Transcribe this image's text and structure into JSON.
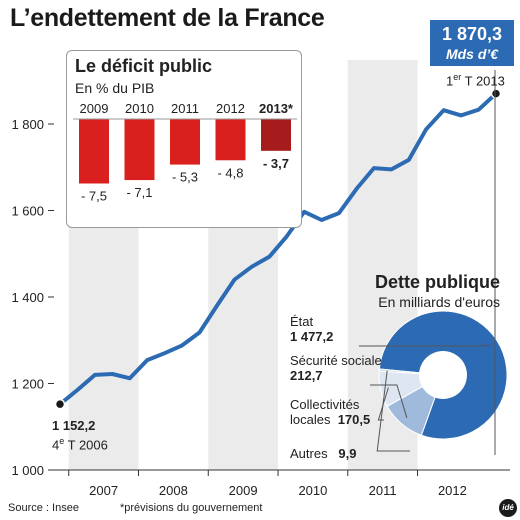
{
  "title": "L’endettement de la France",
  "latest": {
    "value": "1 870,3",
    "unit": "Mds d’€",
    "date_base": "1",
    "date_sup": "er",
    "date_rest": " T 2013"
  },
  "start": {
    "value": "1 152,2",
    "date_base": "4",
    "date_sup": "e",
    "date_rest": " T 2006"
  },
  "source": "Source : Insee",
  "note": "*prévisions du gouvernement",
  "logo": "idé",
  "colors": {
    "line": "#2c6bb3",
    "bar": "#d9201f",
    "bar_forecast": "#a61c1c",
    "band": "#ebebeb"
  },
  "chart_data": [
    {
      "type": "line",
      "x": [
        "2006-T4",
        "2007-T1",
        "2007-T2",
        "2007-T3",
        "2007-T4",
        "2008-T1",
        "2008-T2",
        "2008-T3",
        "2008-T4",
        "2009-T1",
        "2009-T2",
        "2009-T3",
        "2009-T4",
        "2010-T1",
        "2010-T2",
        "2010-T3",
        "2010-T4",
        "2011-T1",
        "2011-T2",
        "2011-T3",
        "2011-T4",
        "2012-T1",
        "2012-T2",
        "2012-T3",
        "2012-T4",
        "2013-T1"
      ],
      "series": [
        {
          "name": "",
          "values": [
            1152.2,
            1185,
            1220,
            1222,
            1212,
            1254,
            1270,
            1288,
            1318,
            1380,
            1440,
            1470,
            1493,
            1540,
            1597,
            1578,
            1594,
            1650,
            1698,
            1695,
            1717,
            1788,
            1832,
            1820,
            1833,
            1870.3
          ]
        }
      ],
      "xticklabels": [
        "2007",
        "2008",
        "2009",
        "2010",
        "2011",
        "2012"
      ],
      "yticks": [
        1000,
        1200,
        1400,
        1600,
        1800
      ],
      "yticklabels": [
        "1 000",
        "1 200",
        "1 400",
        "1 600",
        "1 800"
      ],
      "ylim": [
        1000,
        1900
      ],
      "grid": false,
      "bands": "alternate years shaded grey"
    },
    {
      "type": "bar",
      "title": "Le déficit public",
      "subtitle": "En % du PIB",
      "categories": [
        "2009",
        "2010",
        "2011",
        "2012",
        "2013*"
      ],
      "values": [
        -7.5,
        -7.1,
        -5.3,
        -4.8,
        -3.7
      ],
      "labels": [
        "- 7,5",
        "- 7,1",
        "- 5,3",
        "- 4,8",
        "- 3,7"
      ],
      "forecast_index": 4
    },
    {
      "type": "pie",
      "title": "Dette publique",
      "subtitle": "En milliards d'euros",
      "series": [
        {
          "name": "État",
          "value": 1477.2,
          "label": "1 477,2",
          "color": "#2c6bb3"
        },
        {
          "name": "Sécurité sociale",
          "value": 212.7,
          "label": "212,7",
          "color": "#9fbadb"
        },
        {
          "name": "Collectivités locales",
          "value": 170.5,
          "label": "170,5",
          "color": "#dde6f1"
        },
        {
          "name": "Autres",
          "value": 9.9,
          "label": "9,9",
          "color": "#c9d7ea"
        }
      ]
    }
  ]
}
